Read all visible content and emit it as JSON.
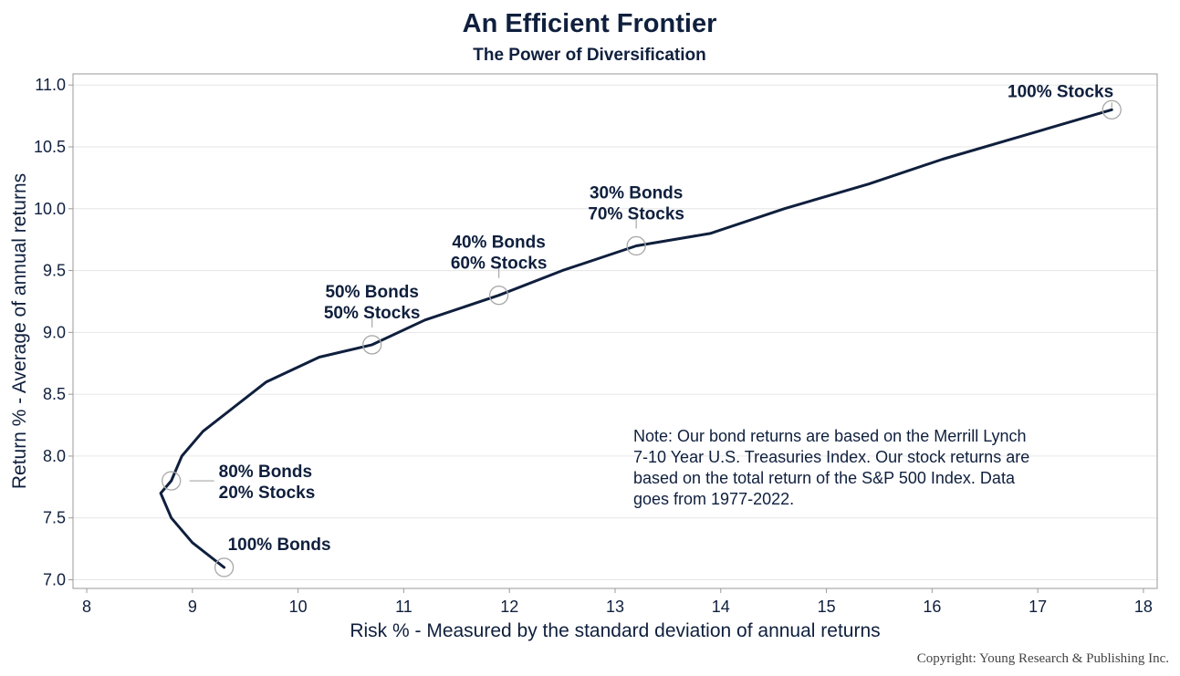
{
  "colors": {
    "line": "#0f1f3d",
    "text": "#0f1f3d",
    "marker": "#a8a8a8",
    "grid": "#e6e6e6",
    "frame": "#9a9a9a",
    "copyright": "#444444",
    "background": "#ffffff"
  },
  "chart_data": {
    "type": "line",
    "title": "An Efficient Frontier",
    "subtitle": "The Power of Diversification",
    "xlabel": "Risk % - Measured by the standard deviation of annual returns",
    "ylabel": "Return % - Average of annual returns",
    "xlim": [
      7.87,
      18.13
    ],
    "ylim": [
      6.93,
      11.09
    ],
    "xticks": [
      8,
      9,
      10,
      11,
      12,
      13,
      14,
      15,
      16,
      17,
      18
    ],
    "yticks": [
      7.0,
      7.5,
      8.0,
      8.5,
      9.0,
      9.5,
      10.0,
      10.5,
      11.0
    ],
    "ytick_labels": [
      "7.0",
      "7.5",
      "8.0",
      "8.5",
      "9.0",
      "9.5",
      "10.0",
      "10.5",
      "11.0"
    ],
    "grid": "horizontal",
    "series": [
      {
        "name": "Efficient Frontier",
        "x": [
          9.3,
          9.0,
          8.8,
          8.7,
          8.8,
          8.9,
          9.1,
          9.7,
          10.2,
          10.7,
          11.2,
          11.9,
          12.5,
          13.2,
          13.9,
          14.6,
          15.4,
          16.1,
          16.9,
          17.7
        ],
        "y": [
          7.1,
          7.3,
          7.5,
          7.7,
          7.8,
          8.0,
          8.2,
          8.6,
          8.8,
          8.9,
          9.1,
          9.3,
          9.5,
          9.7,
          9.8,
          10.0,
          10.2,
          10.4,
          10.6,
          10.8
        ]
      }
    ],
    "annotations": [
      {
        "lines": [
          "100% Bonds"
        ],
        "x": 9.3,
        "y": 7.1,
        "label_position": "above-right"
      },
      {
        "lines": [
          "80% Bonds",
          "20% Stocks"
        ],
        "x": 8.8,
        "y": 7.8,
        "label_position": "right"
      },
      {
        "lines": [
          "50% Bonds",
          "50% Stocks"
        ],
        "x": 10.7,
        "y": 8.9,
        "label_position": "above"
      },
      {
        "lines": [
          "40% Bonds",
          "60% Stocks"
        ],
        "x": 11.9,
        "y": 9.3,
        "label_position": "above"
      },
      {
        "lines": [
          "30% Bonds",
          "70% Stocks"
        ],
        "x": 13.2,
        "y": 9.7,
        "label_position": "above"
      },
      {
        "lines": [
          "100% Stocks"
        ],
        "x": 17.7,
        "y": 10.8,
        "label_position": "above-left"
      }
    ],
    "note": [
      "Note:  Our bond returns are based on the Merrill Lynch",
      "7-10 Year U.S. Treasuries Index.  Our stock returns are",
      "based on the total return of the S&P 500 Index.  Data",
      "goes from 1977-2022."
    ]
  },
  "footer": {
    "copyright": "Copyright: Young Research & Publishing Inc."
  }
}
